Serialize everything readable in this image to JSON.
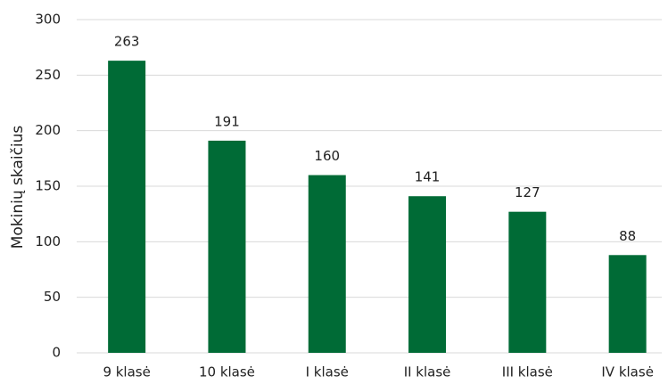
{
  "chart_data": {
    "type": "bar",
    "y_label": "Mokinių skaičius",
    "categories": [
      "9 klasė",
      "10 klasė",
      "I klasė",
      "II klasė",
      "III klasė",
      "IV klasė"
    ],
    "values": [
      263,
      191,
      160,
      141,
      127,
      88
    ],
    "color": "#006b36",
    "ylim": [
      0,
      300
    ],
    "yticks": [
      0,
      50,
      100,
      150,
      200,
      250,
      300
    ],
    "grid": true
  }
}
